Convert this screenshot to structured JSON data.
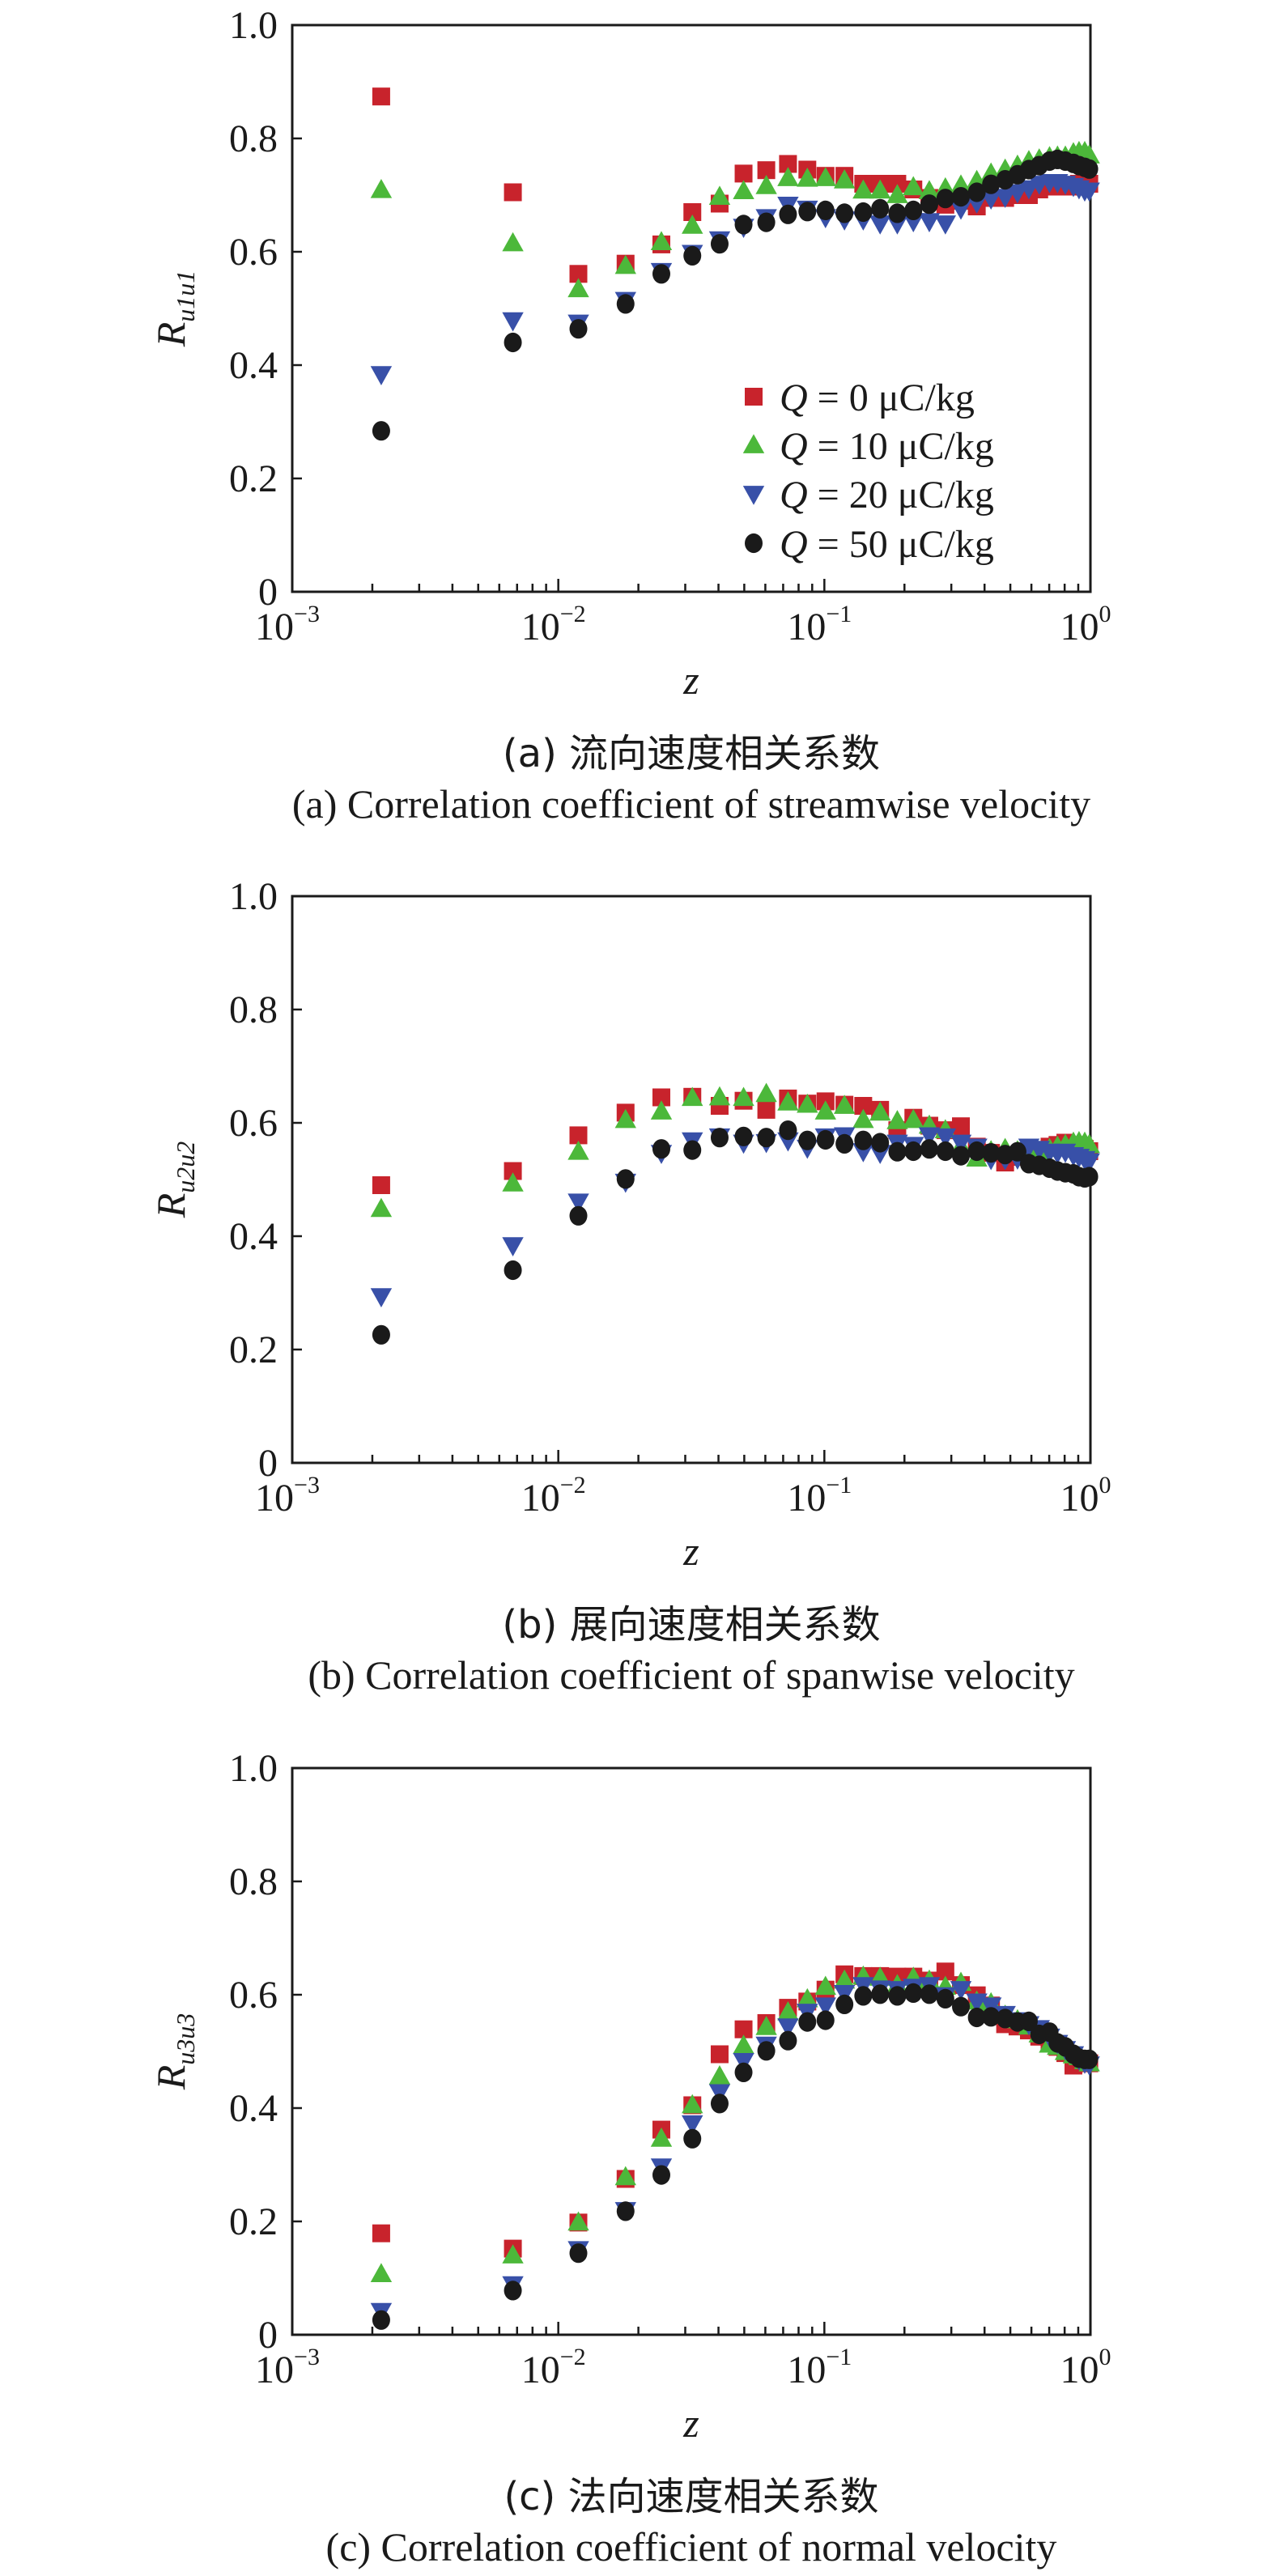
{
  "legend": [
    {
      "var": "Q",
      "text": " = 0 μC/kg",
      "marker": "square",
      "color": "#c8232c"
    },
    {
      "var": "Q",
      "text": " = 10 μC/kg",
      "marker": "triangle-up",
      "color": "#4cb83a"
    },
    {
      "var": "Q",
      "text": " = 20 μC/kg",
      "marker": "triangle-down",
      "color": "#3850a8"
    },
    {
      "var": "Q",
      "text": " = 50 μC/kg",
      "marker": "circle",
      "color": "#1a1a1a"
    }
  ],
  "chart_data": [
    {
      "type": "scatter",
      "caption_cn": "(a) 流向速度相关系数",
      "caption_en": "(a) Correlation coefficient of streamwise velocity",
      "xlabel": "z",
      "ylabel": {
        "main": "R",
        "sub": "u1u1"
      },
      "xscale": "log",
      "xlim": [
        0.001,
        1
      ],
      "ylim": [
        0,
        1
      ],
      "x_ticks": [
        {
          "base": "10",
          "exp": "−3"
        },
        {
          "base": "10",
          "exp": "−2"
        },
        {
          "base": "10",
          "exp": "−1"
        },
        {
          "base": "10",
          "exp": "0"
        }
      ],
      "y_ticks": [
        "0",
        "0.2",
        "0.4",
        "0.6",
        "0.8",
        "1.0"
      ],
      "grid": false,
      "legend_placement": "bottom-right",
      "x": [
        0.00216,
        0.00675,
        0.0119,
        0.0179,
        0.0244,
        0.0319,
        0.0404,
        0.0497,
        0.0605,
        0.073,
        0.0863,
        0.101,
        0.119,
        0.14,
        0.162,
        0.188,
        0.216,
        0.248,
        0.285,
        0.326,
        0.374,
        0.423,
        0.478,
        0.532,
        0.587,
        0.642,
        0.702,
        0.752,
        0.805,
        0.863,
        0.906,
        0.952,
        0.99
      ],
      "series": [
        {
          "name": "Q = 0 μC/kg",
          "values": [
            0.874,
            0.705,
            0.561,
            0.579,
            0.613,
            0.67,
            0.685,
            0.738,
            0.744,
            0.755,
            0.745,
            0.734,
            0.734,
            0.72,
            0.72,
            0.72,
            0.71,
            0.695,
            0.683,
            0.69,
            0.68,
            0.695,
            0.695,
            0.7,
            0.7,
            0.71,
            0.715,
            0.715,
            0.715,
            0.715,
            0.72,
            0.72,
            0.72
          ]
        },
        {
          "name": "Q = 10 μC/kg",
          "values": [
            0.709,
            0.615,
            0.534,
            0.575,
            0.617,
            0.646,
            0.697,
            0.707,
            0.716,
            0.73,
            0.729,
            0.73,
            0.726,
            0.708,
            0.708,
            0.7,
            0.714,
            0.707,
            0.712,
            0.717,
            0.725,
            0.738,
            0.745,
            0.752,
            0.76,
            0.763,
            0.767,
            0.768,
            0.768,
            0.774,
            0.776,
            0.776,
            0.77
          ]
        },
        {
          "name": "Q = 20 μC/kg",
          "values": [
            0.384,
            0.479,
            0.475,
            0.515,
            0.566,
            0.598,
            0.622,
            0.644,
            0.661,
            0.683,
            0.676,
            0.661,
            0.657,
            0.657,
            0.65,
            0.65,
            0.654,
            0.654,
            0.65,
            0.676,
            0.687,
            0.694,
            0.697,
            0.705,
            0.712,
            0.72,
            0.723,
            0.723,
            0.72,
            0.716,
            0.712,
            0.708,
            0.708
          ]
        },
        {
          "name": "Q = 50 μC/kg",
          "values": [
            0.284,
            0.44,
            0.464,
            0.508,
            0.561,
            0.593,
            0.614,
            0.648,
            0.652,
            0.666,
            0.671,
            0.673,
            0.668,
            0.67,
            0.676,
            0.668,
            0.673,
            0.684,
            0.694,
            0.697,
            0.705,
            0.719,
            0.727,
            0.736,
            0.745,
            0.752,
            0.76,
            0.763,
            0.76,
            0.756,
            0.752,
            0.749,
            0.746
          ]
        }
      ]
    },
    {
      "type": "scatter",
      "caption_cn": "(b) 展向速度相关系数",
      "caption_en": "(b) Correlation coefficient of spanwise velocity",
      "xlabel": "z",
      "ylabel": {
        "main": "R",
        "sub": "u2u2"
      },
      "xscale": "log",
      "xlim": [
        0.001,
        1
      ],
      "ylim": [
        0,
        1
      ],
      "x_ticks": [
        {
          "base": "10",
          "exp": "−3"
        },
        {
          "base": "10",
          "exp": "−2"
        },
        {
          "base": "10",
          "exp": "−1"
        },
        {
          "base": "10",
          "exp": "0"
        }
      ],
      "y_ticks": [
        "0",
        "0.2",
        "0.4",
        "0.6",
        "0.8",
        "1.0"
      ],
      "grid": false,
      "x": [
        0.00216,
        0.00675,
        0.0119,
        0.0179,
        0.0244,
        0.0319,
        0.0404,
        0.0497,
        0.0605,
        0.073,
        0.0863,
        0.101,
        0.119,
        0.14,
        0.162,
        0.188,
        0.216,
        0.248,
        0.285,
        0.326,
        0.374,
        0.423,
        0.478,
        0.532,
        0.587,
        0.642,
        0.702,
        0.752,
        0.805,
        0.863,
        0.906,
        0.952,
        0.99
      ],
      "series": [
        {
          "name": "Q = 0 μC/kg",
          "values": [
            0.49,
            0.515,
            0.578,
            0.618,
            0.645,
            0.646,
            0.63,
            0.639,
            0.623,
            0.643,
            0.634,
            0.638,
            0.632,
            0.63,
            0.623,
            0.587,
            0.609,
            0.595,
            0.587,
            0.594,
            0.558,
            0.547,
            0.53,
            0.54,
            0.543,
            0.549,
            0.558,
            0.561,
            0.565,
            0.561,
            0.558,
            0.554,
            0.55
          ]
        },
        {
          "name": "Q = 10 μC/kg",
          "values": [
            0.448,
            0.493,
            0.549,
            0.605,
            0.62,
            0.644,
            0.645,
            0.644,
            0.651,
            0.636,
            0.632,
            0.62,
            0.63,
            0.605,
            0.618,
            0.603,
            0.605,
            0.595,
            0.587,
            0.558,
            0.537,
            0.55,
            0.554,
            0.55,
            0.547,
            0.549,
            0.554,
            0.558,
            0.561,
            0.565,
            0.566,
            0.565,
            0.561
          ]
        },
        {
          "name": "Q = 20 μC/kg",
          "values": [
            0.294,
            0.384,
            0.461,
            0.496,
            0.547,
            0.569,
            0.576,
            0.565,
            0.566,
            0.569,
            0.556,
            0.576,
            0.578,
            0.55,
            0.547,
            0.565,
            0.561,
            0.578,
            0.576,
            0.565,
            0.558,
            0.536,
            0.536,
            0.537,
            0.558,
            0.554,
            0.549,
            0.547,
            0.549,
            0.543,
            0.54,
            0.536,
            0.532
          ]
        },
        {
          "name": "Q = 50 μC/kg",
          "values": [
            0.226,
            0.34,
            0.436,
            0.501,
            0.554,
            0.552,
            0.574,
            0.576,
            0.574,
            0.587,
            0.569,
            0.57,
            0.563,
            0.569,
            0.565,
            0.549,
            0.55,
            0.554,
            0.55,
            0.542,
            0.55,
            0.547,
            0.544,
            0.549,
            0.528,
            0.525,
            0.52,
            0.515,
            0.512,
            0.51,
            0.505,
            0.503,
            0.505
          ]
        }
      ]
    },
    {
      "type": "scatter",
      "caption_cn": "(c) 法向速度相关系数",
      "caption_en": "(c) Correlation coefficient of normal velocity",
      "xlabel": "z",
      "ylabel": {
        "main": "R",
        "sub": "u3u3"
      },
      "xscale": "log",
      "xlim": [
        0.001,
        1
      ],
      "ylim": [
        0,
        1
      ],
      "x_ticks": [
        {
          "base": "10",
          "exp": "−3"
        },
        {
          "base": "10",
          "exp": "−2"
        },
        {
          "base": "10",
          "exp": "−1"
        },
        {
          "base": "10",
          "exp": "0"
        }
      ],
      "y_ticks": [
        "0",
        "0.2",
        "0.4",
        "0.6",
        "0.8",
        "1.0"
      ],
      "grid": false,
      "x": [
        0.00216,
        0.00675,
        0.0119,
        0.0179,
        0.0244,
        0.0319,
        0.0404,
        0.0497,
        0.0605,
        0.073,
        0.0863,
        0.101,
        0.119,
        0.14,
        0.162,
        0.188,
        0.216,
        0.248,
        0.285,
        0.326,
        0.374,
        0.423,
        0.478,
        0.532,
        0.587,
        0.642,
        0.702,
        0.752,
        0.805,
        0.863,
        0.906,
        0.952,
        0.99
      ],
      "series": [
        {
          "name": "Q = 0 μC/kg",
          "values": [
            0.179,
            0.152,
            0.198,
            0.275,
            0.362,
            0.405,
            0.495,
            0.539,
            0.55,
            0.577,
            0.588,
            0.609,
            0.636,
            0.633,
            0.633,
            0.632,
            0.632,
            0.625,
            0.641,
            0.617,
            0.599,
            0.581,
            0.548,
            0.544,
            0.537,
            0.526,
            0.515,
            0.508,
            0.497,
            0.475,
            0.483,
            0.483,
            0.479
          ]
        },
        {
          "name": "Q = 10 μC/kg",
          "values": [
            0.107,
            0.14,
            0.198,
            0.278,
            0.346,
            0.405,
            0.456,
            0.51,
            0.543,
            0.569,
            0.592,
            0.614,
            0.625,
            0.632,
            0.63,
            0.617,
            0.63,
            0.625,
            0.614,
            0.621,
            0.588,
            0.585,
            0.563,
            0.555,
            0.544,
            0.53,
            0.512,
            0.508,
            0.499,
            0.493,
            0.49,
            0.483,
            0.479
          ]
        },
        {
          "name": "Q = 20 μC/kg",
          "values": [
            0.042,
            0.089,
            0.151,
            0.22,
            0.297,
            0.373,
            0.428,
            0.483,
            0.512,
            0.544,
            0.57,
            0.581,
            0.603,
            0.617,
            0.611,
            0.61,
            0.614,
            0.617,
            0.599,
            0.61,
            0.588,
            0.581,
            0.566,
            0.555,
            0.548,
            0.541,
            0.526,
            0.515,
            0.504,
            0.495,
            0.486,
            0.48,
            0.477
          ]
        },
        {
          "name": "Q = 50 μC/kg",
          "values": [
            0.026,
            0.078,
            0.144,
            0.218,
            0.282,
            0.346,
            0.408,
            0.463,
            0.501,
            0.519,
            0.552,
            0.555,
            0.583,
            0.598,
            0.601,
            0.598,
            0.603,
            0.601,
            0.593,
            0.579,
            0.56,
            0.561,
            0.558,
            0.552,
            0.553,
            0.53,
            0.534,
            0.515,
            0.508,
            0.495,
            0.488,
            0.486,
            0.486
          ]
        }
      ]
    }
  ]
}
